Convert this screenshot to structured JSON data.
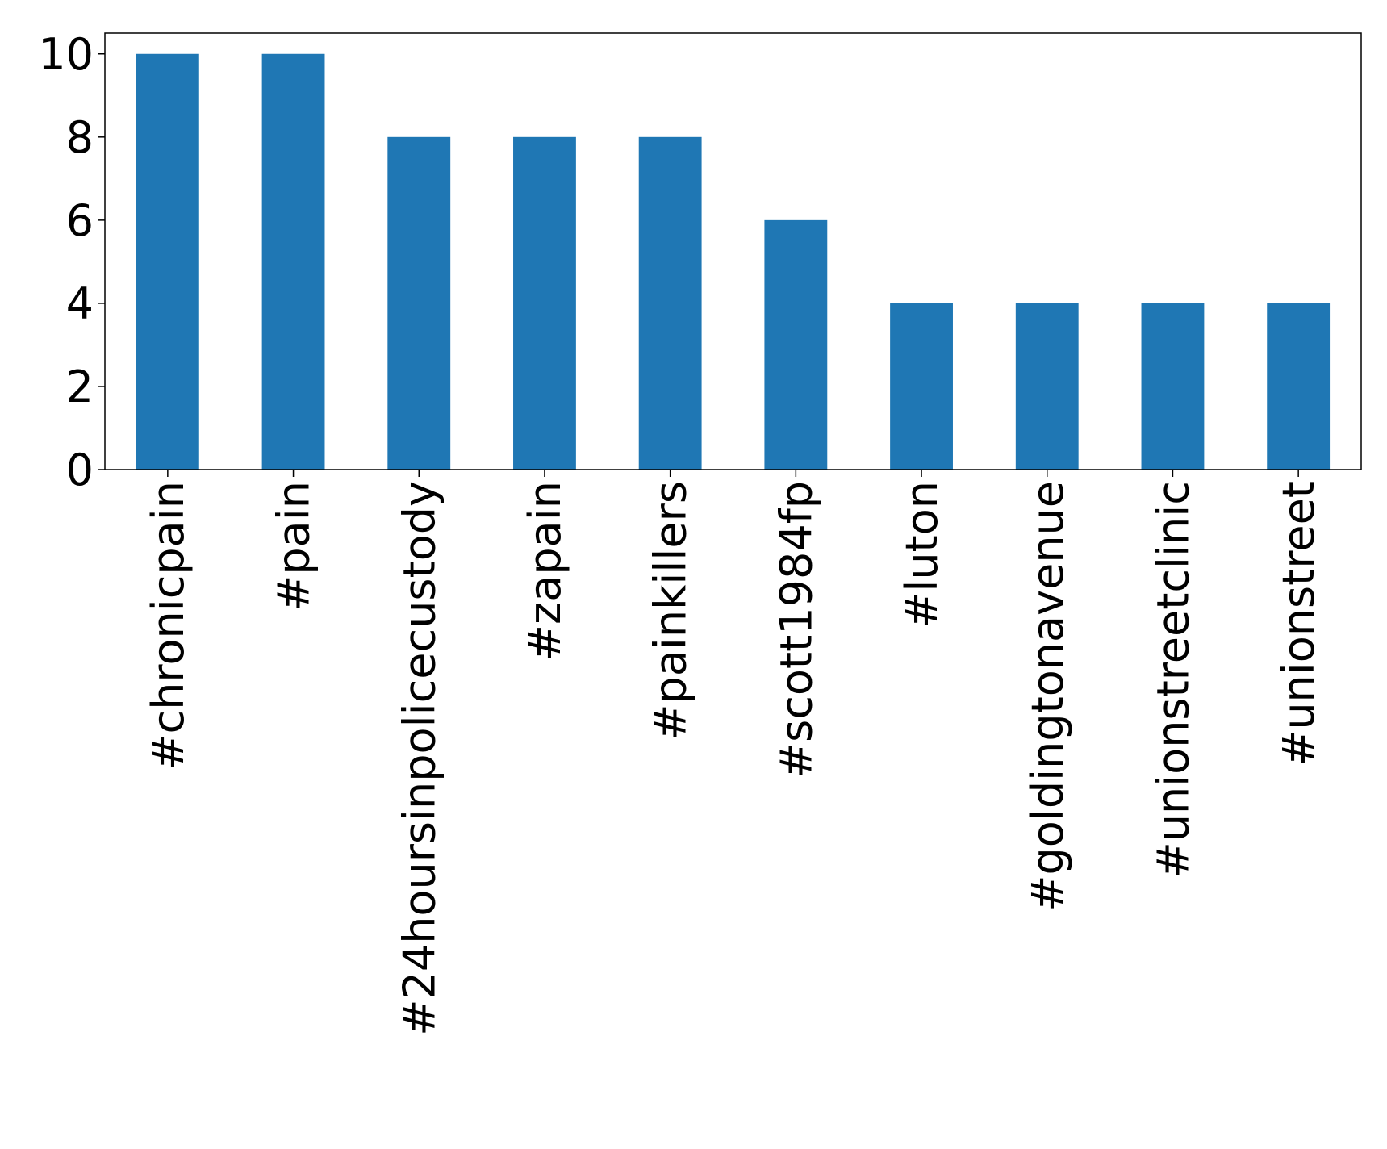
{
  "chart_data": {
    "type": "bar",
    "categories": [
      "#chronicpain",
      "#pain",
      "#24hoursinpolicecustody",
      "#zapain",
      "#painkillers",
      "#scott1984fp",
      "#luton",
      "#goldingtonavenue",
      "#unionstreetclinic",
      "#unionstreet"
    ],
    "values": [
      10,
      10,
      8,
      8,
      8,
      6,
      4,
      4,
      4,
      4
    ],
    "color": "#1f77b4",
    "ylim": [
      0,
      10.5
    ],
    "yticks": [
      0,
      2,
      4,
      6,
      8,
      10
    ],
    "grid": false
  }
}
